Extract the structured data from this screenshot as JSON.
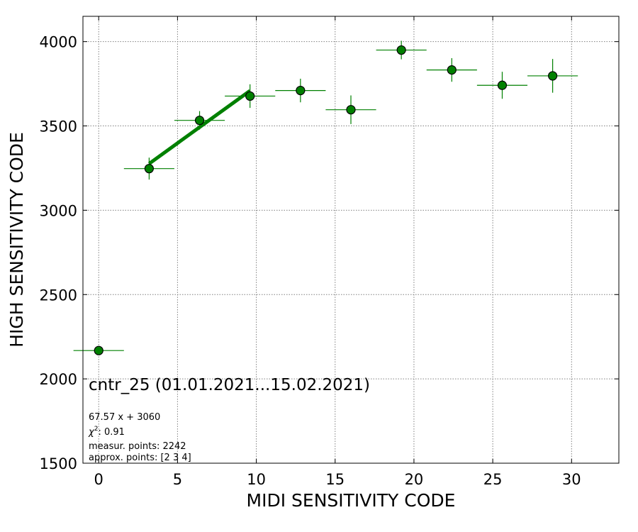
{
  "chart_data": {
    "type": "scatter",
    "xlabel": "MIDI SENSITIVITY CODE",
    "ylabel": "HIGH SENSITIVITY CODE",
    "xlim": [
      -1,
      33
    ],
    "ylim": [
      1500,
      4150
    ],
    "x_ticks": [
      0,
      5,
      10,
      15,
      20,
      25,
      30
    ],
    "y_ticks": [
      1500,
      2000,
      2500,
      3000,
      3500,
      4000
    ],
    "grid": true,
    "series": [
      {
        "color": "#008000",
        "points": [
          {
            "x": 0.0,
            "y": 2168,
            "x_err": 1.6,
            "y_err": 0
          },
          {
            "x": 3.2,
            "y": 3247,
            "x_err": 1.6,
            "y_err": 65
          },
          {
            "x": 6.4,
            "y": 3533,
            "x_err": 1.6,
            "y_err": 55
          },
          {
            "x": 9.6,
            "y": 3677,
            "x_err": 1.6,
            "y_err": 70
          },
          {
            "x": 12.8,
            "y": 3710,
            "x_err": 1.6,
            "y_err": 70
          },
          {
            "x": 16.0,
            "y": 3596,
            "x_err": 1.6,
            "y_err": 85
          },
          {
            "x": 19.2,
            "y": 3950,
            "x_err": 1.6,
            "y_err": 55
          },
          {
            "x": 22.4,
            "y": 3832,
            "x_err": 1.6,
            "y_err": 70
          },
          {
            "x": 25.6,
            "y": 3741,
            "x_err": 1.6,
            "y_err": 80
          },
          {
            "x": 28.8,
            "y": 3797,
            "x_err": 1.6,
            "y_err": 100
          }
        ]
      }
    ],
    "fit": {
      "color": "#008000",
      "slope": 67.57,
      "intercept": 3060,
      "x_range": [
        3.2,
        9.6
      ]
    },
    "annotations": {
      "title": "cntr_25 (01.01.2021...15.02.2021)",
      "equation": "67.57 x + 3060",
      "chi2_label": "χ",
      "chi2_sup": "2",
      "chi2_value": ": 0.91",
      "measur_points": "measur. points: 2242",
      "approx_points": "approx. points: [2 3 4]"
    }
  }
}
